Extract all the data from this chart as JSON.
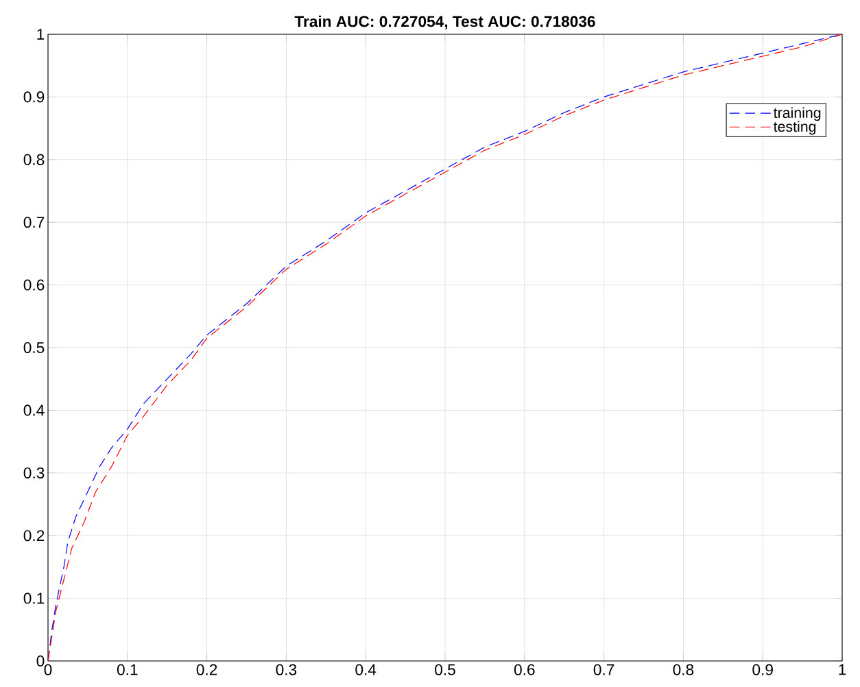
{
  "chart_data": {
    "type": "line",
    "title": "Train AUC: 0.727054, Test AUC: 0.718036",
    "series": [
      {
        "name": "training",
        "color": "#0000ff",
        "x": [
          0,
          0.005,
          0.01,
          0.02,
          0.025,
          0.035,
          0.05,
          0.065,
          0.08,
          0.1,
          0.12,
          0.15,
          0.18,
          0.2,
          0.25,
          0.3,
          0.35,
          0.4,
          0.45,
          0.5,
          0.55,
          0.6,
          0.65,
          0.7,
          0.75,
          0.8,
          0.85,
          0.9,
          0.95,
          1
        ],
        "values": [
          0,
          0.05,
          0.09,
          0.15,
          0.19,
          0.23,
          0.27,
          0.31,
          0.34,
          0.37,
          0.41,
          0.45,
          0.49,
          0.52,
          0.57,
          0.63,
          0.67,
          0.715,
          0.75,
          0.785,
          0.82,
          0.845,
          0.875,
          0.9,
          0.92,
          0.94,
          0.955,
          0.97,
          0.985,
          1
        ]
      },
      {
        "name": "testing",
        "color": "#ff0000",
        "x": [
          0,
          0.005,
          0.01,
          0.02,
          0.03,
          0.045,
          0.06,
          0.08,
          0.1,
          0.12,
          0.15,
          0.18,
          0.2,
          0.25,
          0.3,
          0.35,
          0.4,
          0.45,
          0.5,
          0.55,
          0.6,
          0.65,
          0.7,
          0.75,
          0.8,
          0.85,
          0.9,
          0.95,
          1
        ],
        "values": [
          0,
          0.04,
          0.08,
          0.13,
          0.18,
          0.22,
          0.27,
          0.31,
          0.36,
          0.39,
          0.44,
          0.48,
          0.515,
          0.565,
          0.625,
          0.665,
          0.71,
          0.745,
          0.78,
          0.815,
          0.84,
          0.87,
          0.895,
          0.915,
          0.935,
          0.95,
          0.965,
          0.98,
          1
        ]
      }
    ],
    "xlim": [
      0,
      1
    ],
    "ylim": [
      0,
      1
    ],
    "xticks": [
      0,
      0.1,
      0.2,
      0.3,
      0.4,
      0.5,
      0.6,
      0.7,
      0.8,
      0.9,
      1
    ],
    "yticks": [
      0,
      0.1,
      0.2,
      0.3,
      0.4,
      0.5,
      0.6,
      0.7,
      0.8,
      0.9,
      1
    ],
    "grid": true,
    "legend": "top right",
    "line_style": "dashed"
  }
}
